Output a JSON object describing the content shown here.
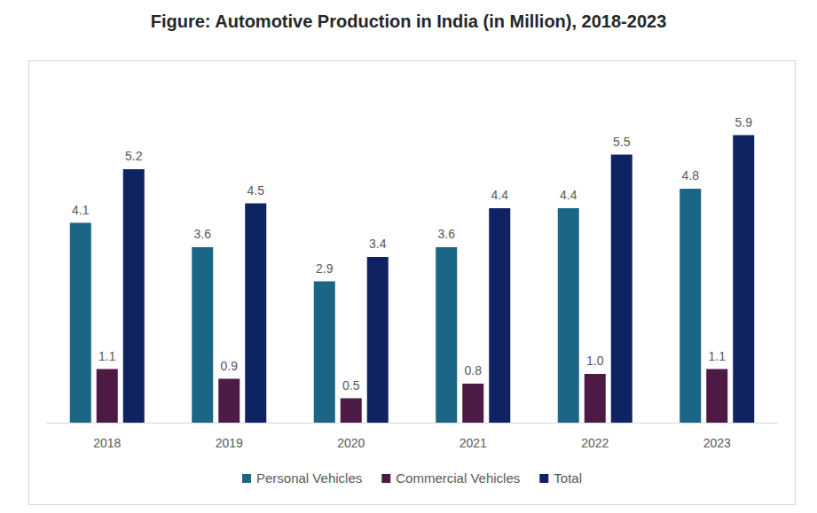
{
  "chart_data": {
    "type": "bar",
    "title": "Figure: Automotive Production in India (in Million), 2018-2023",
    "categories": [
      "2018",
      "2019",
      "2020",
      "2021",
      "2022",
      "2023"
    ],
    "series": [
      {
        "name": "Personal Vehicles",
        "color": "#1b6585",
        "values": [
          4.1,
          3.6,
          2.9,
          3.6,
          4.4,
          4.8
        ]
      },
      {
        "name": "Commercial Vehicles",
        "color": "#4d1a45",
        "values": [
          1.1,
          0.9,
          0.5,
          0.8,
          1.0,
          1.1
        ]
      },
      {
        "name": "Total",
        "color": "#0f2262",
        "values": [
          5.2,
          4.5,
          3.4,
          4.4,
          5.5,
          5.9
        ]
      }
    ],
    "value_labels": null,
    "ylim": [
      0,
      6
    ],
    "data_labels": true,
    "tick_labels": "x",
    "grid": false,
    "legend": "bottom"
  }
}
